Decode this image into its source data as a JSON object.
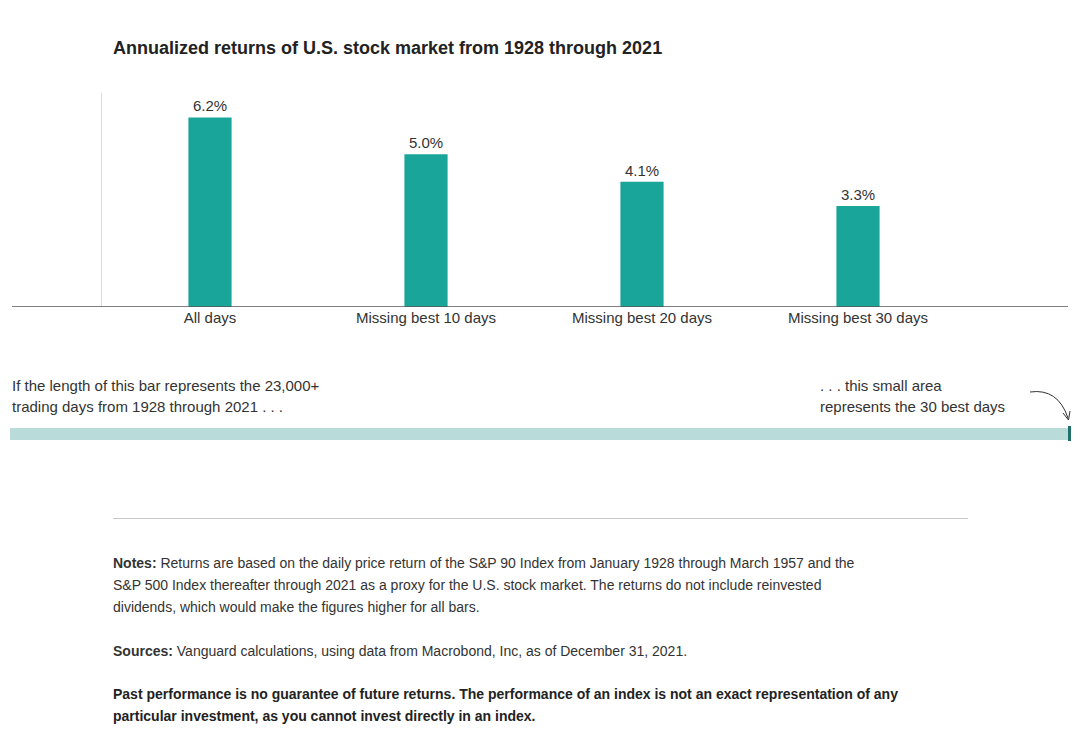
{
  "chart_data": {
    "type": "bar",
    "title": "Annualized returns of U.S. stock market from 1928 through 2021",
    "categories": [
      "All days",
      "Missing best 10 days",
      "Missing best 20 days",
      "Missing best 30 days"
    ],
    "values": [
      6.2,
      5.0,
      4.1,
      3.3
    ],
    "value_labels": [
      "6.2%",
      "5.0%",
      "4.1%",
      "3.3%"
    ],
    "data_labels": true,
    "color": "#1aa59b",
    "ylim": [
      0,
      7
    ],
    "tick_labels": "x",
    "grid": false
  },
  "illustration": {
    "left_text": [
      "If the length of this bar represents the 23,000+",
      "trading days from 1928 through 2021 . . ."
    ],
    "right_text": [
      ". . . this small area",
      "represents the 30 best days"
    ]
  },
  "notes": {
    "label": "Notes:",
    "lines": [
      "Returns are based on the daily price return of the S&P 90 Index from January 1928 through March 1957 and the",
      "S&P 500 Index thereafter through 2021 as a proxy for the U.S. stock market. The returns do not include reinvested",
      "dividends, which would make the figures higher for all bars."
    ]
  },
  "sources": {
    "label": "Sources:",
    "text": "Vanguard calculations, using data from Macrobond, Inc, as of December 31, 2021."
  },
  "disclaimer": [
    "Past performance is no guarantee of future returns. The performance of an index is not an exact representation of any",
    "particular investment, as you cannot invest directly in an index."
  ]
}
